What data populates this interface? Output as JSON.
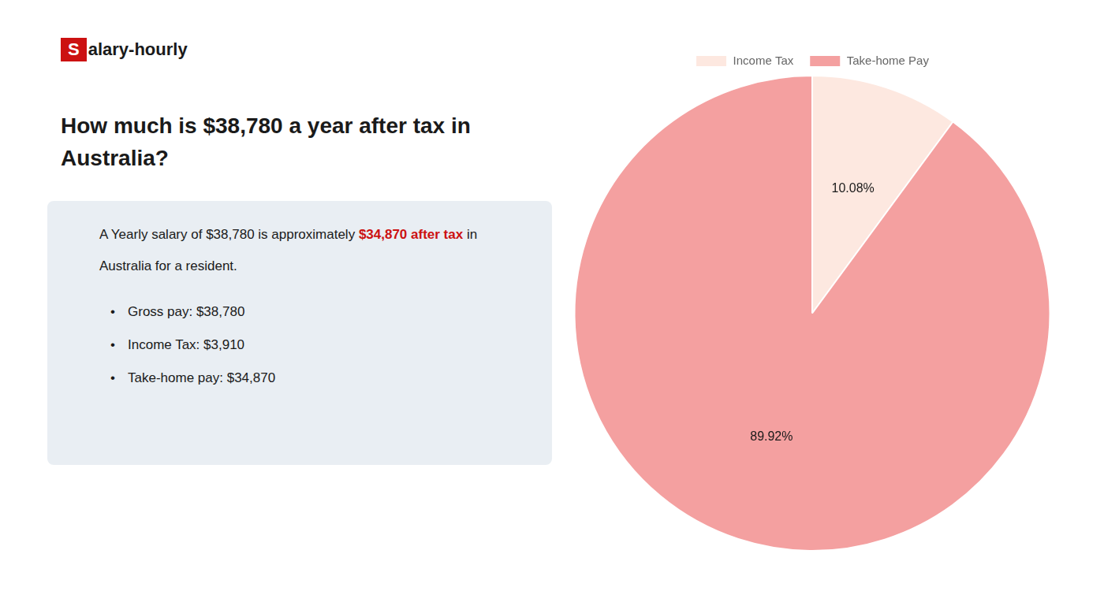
{
  "chart_data": {
    "type": "pie",
    "title": "How much is $38,780 a year after tax in\nAustralia?",
    "annotations": [
      [
        {
          "text": "S",
          "color": "#cc1111"
        },
        {
          "text": "alary-hourly"
        }
      ],
      [
        {
          "text": "A Yearly salary of $38,780 is approximately "
        },
        {
          "text": "$34,870 after tax",
          "color": "#cc1111"
        },
        {
          "text": " in"
        }
      ],
      [
        {
          "text": "Australia for a resident."
        }
      ],
      [
        {
          "text": "•"
        },
        {
          "text": "Gross pay: $38,780"
        }
      ],
      [
        {
          "text": "•"
        },
        {
          "text": "Income Tax: $3,910"
        }
      ],
      [
        {
          "text": "•"
        },
        {
          "text": "Take-home pay: $34,870"
        }
      ]
    ],
    "categories": [
      "Income Tax",
      "Take-home Pay"
    ],
    "values": [
      10.08,
      89.92
    ],
    "value_labels": [
      "10.08%",
      "89.92%"
    ],
    "colors": [
      "#fde8e0",
      "#f4a0a0"
    ],
    "data_labels": true,
    "legend": "top"
  }
}
